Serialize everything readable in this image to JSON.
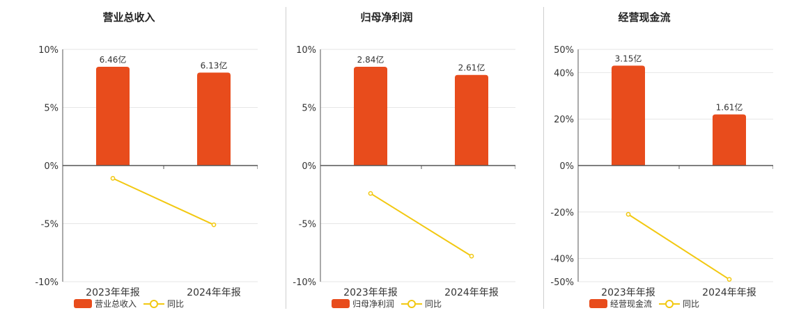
{
  "colors": {
    "bar": "#e84c1c",
    "line": "#f2c811",
    "axis": "#555555",
    "grid": "#e6e6e6"
  },
  "chart_data": [
    {
      "type": "bar",
      "title": "营业总收入",
      "categories": [
        "2023年年报",
        "2024年年报"
      ],
      "series": [
        {
          "name": "营业总收入",
          "type": "bar",
          "values": [
            8.5,
            8.0
          ],
          "labels": [
            "6.46亿",
            "6.13亿"
          ]
        },
        {
          "name": "同比",
          "type": "line",
          "values": [
            -1.1,
            -5.1
          ]
        }
      ],
      "yticks": [
        "10%",
        "5%",
        "0%",
        "-5%",
        "-10%"
      ],
      "ylim": [
        -10,
        10
      ],
      "tick_values": [
        10,
        5,
        0,
        -5,
        -10
      ],
      "legend": "bottom"
    },
    {
      "type": "bar",
      "title": "归母净利润",
      "categories": [
        "2023年年报",
        "2024年年报"
      ],
      "series": [
        {
          "name": "归母净利润",
          "type": "bar",
          "values": [
            8.5,
            7.8
          ],
          "labels": [
            "2.84亿",
            "2.61亿"
          ]
        },
        {
          "name": "同比",
          "type": "line",
          "values": [
            -2.4,
            -7.8
          ]
        }
      ],
      "yticks": [
        "10%",
        "5%",
        "0%",
        "-5%",
        "-10%"
      ],
      "ylim": [
        -10,
        10
      ],
      "tick_values": [
        10,
        5,
        0,
        -5,
        -10
      ],
      "legend": "bottom"
    },
    {
      "type": "bar",
      "title": "经营现金流",
      "categories": [
        "2023年年报",
        "2024年年报"
      ],
      "series": [
        {
          "name": "经营现金流",
          "type": "bar",
          "values": [
            43,
            22
          ],
          "labels": [
            "3.15亿",
            "1.61亿"
          ]
        },
        {
          "name": "同比",
          "type": "line",
          "values": [
            -21,
            -49
          ]
        }
      ],
      "yticks": [
        "50%",
        "40%",
        "20%",
        "0%",
        "-20%",
        "-40%",
        "-50%"
      ],
      "ylim": [
        -50,
        50
      ],
      "tick_values": [
        50,
        40,
        20,
        0,
        -20,
        -40,
        -50
      ],
      "legend": "bottom"
    }
  ]
}
